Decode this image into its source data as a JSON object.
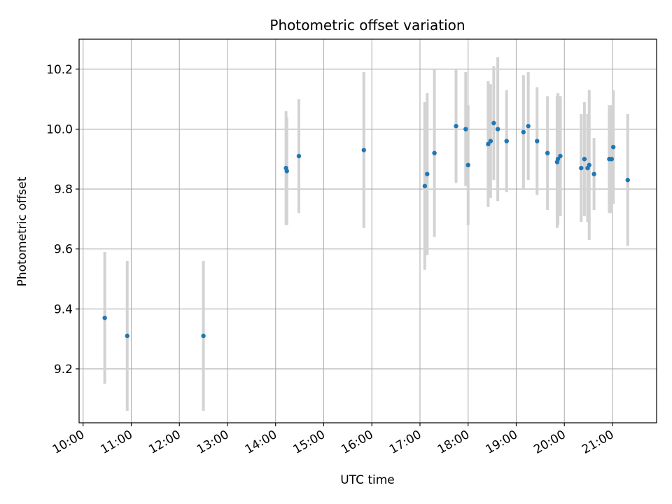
{
  "chart_data": {
    "type": "scatter",
    "title": "Photometric offset variation",
    "xlabel": "UTC time",
    "ylabel": "Photometric offset",
    "x_ticks": [
      "10:00",
      "11:00",
      "12:00",
      "13:00",
      "14:00",
      "15:00",
      "16:00",
      "17:00",
      "18:00",
      "19:00",
      "20:00",
      "21:00"
    ],
    "y_ticks": [
      "9.2",
      "9.4",
      "9.6",
      "9.8",
      "10.0",
      "10.2"
    ],
    "xlim": [
      "09:55",
      "21:55"
    ],
    "ylim": [
      9.02,
      10.3
    ],
    "grid": true,
    "marker_color": "#1f77b4",
    "errorbar_color": "#d3d3d3",
    "points": [
      {
        "x": "10:27",
        "y": 9.37,
        "err": 0.22
      },
      {
        "x": "10:55",
        "y": 9.31,
        "err": 0.25
      },
      {
        "x": "12:30",
        "y": 9.31,
        "err": 0.25
      },
      {
        "x": "14:13",
        "y": 9.87,
        "err": 0.19
      },
      {
        "x": "14:14",
        "y": 9.86,
        "err": 0.18
      },
      {
        "x": "14:29",
        "y": 9.91,
        "err": 0.19
      },
      {
        "x": "15:50",
        "y": 9.93,
        "err": 0.26
      },
      {
        "x": "17:06",
        "y": 9.81,
        "err": 0.28
      },
      {
        "x": "17:09",
        "y": 9.85,
        "err": 0.27
      },
      {
        "x": "17:18",
        "y": 9.92,
        "err": 0.28
      },
      {
        "x": "17:45",
        "y": 10.01,
        "err": 0.19
      },
      {
        "x": "17:57",
        "y": 10.0,
        "err": 0.19
      },
      {
        "x": "18:00",
        "y": 9.88,
        "err": 0.2
      },
      {
        "x": "18:25",
        "y": 9.95,
        "err": 0.21
      },
      {
        "x": "18:28",
        "y": 9.96,
        "err": 0.19
      },
      {
        "x": "18:32",
        "y": 10.02,
        "err": 0.19
      },
      {
        "x": "18:37",
        "y": 10.0,
        "err": 0.24
      },
      {
        "x": "18:48",
        "y": 9.96,
        "err": 0.17
      },
      {
        "x": "19:09",
        "y": 9.99,
        "err": 0.19
      },
      {
        "x": "19:15",
        "y": 10.01,
        "err": 0.18
      },
      {
        "x": "19:26",
        "y": 9.96,
        "err": 0.18
      },
      {
        "x": "19:39",
        "y": 9.92,
        "err": 0.19
      },
      {
        "x": "19:51",
        "y": 9.89,
        "err": 0.22
      },
      {
        "x": "19:52",
        "y": 9.9,
        "err": 0.22
      },
      {
        "x": "19:55",
        "y": 9.91,
        "err": 0.2
      },
      {
        "x": "20:21",
        "y": 9.87,
        "err": 0.18
      },
      {
        "x": "20:25",
        "y": 9.9,
        "err": 0.19
      },
      {
        "x": "20:29",
        "y": 9.87,
        "err": 0.18
      },
      {
        "x": "20:31",
        "y": 9.88,
        "err": 0.25
      },
      {
        "x": "20:37",
        "y": 9.85,
        "err": 0.12
      },
      {
        "x": "20:56",
        "y": 9.9,
        "err": 0.18
      },
      {
        "x": "20:59",
        "y": 9.9,
        "err": 0.18
      },
      {
        "x": "21:01",
        "y": 9.94,
        "err": 0.19
      },
      {
        "x": "21:19",
        "y": 9.83,
        "err": 0.22
      }
    ]
  }
}
